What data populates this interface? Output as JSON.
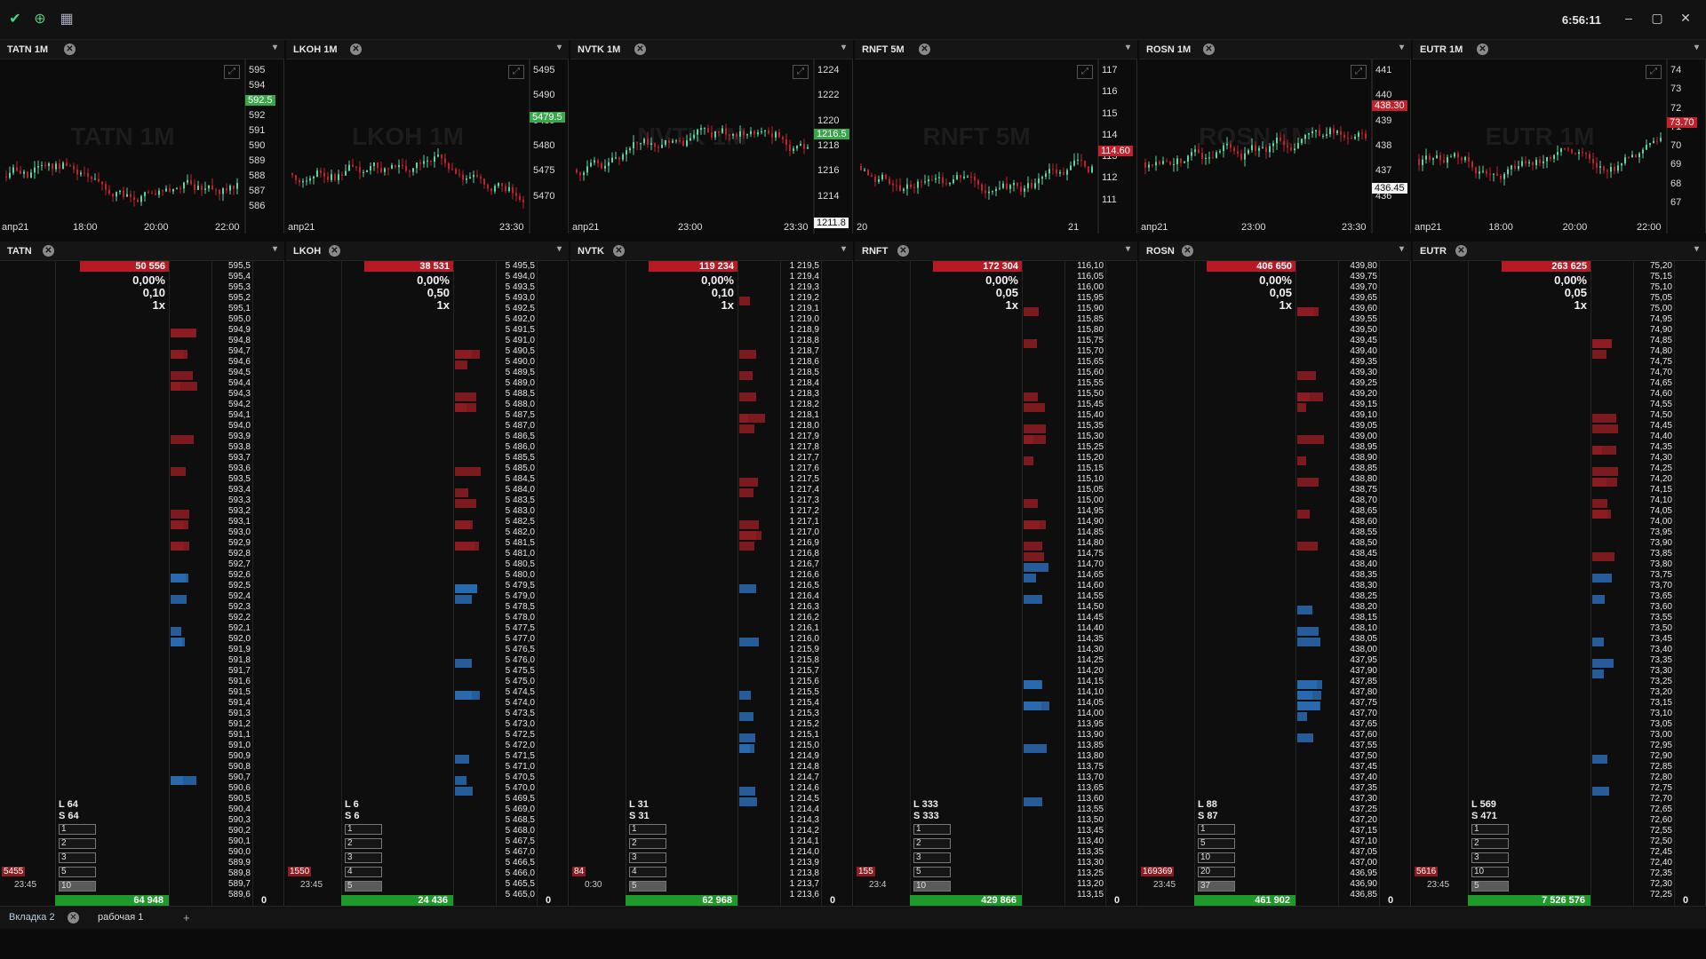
{
  "titlebar": {
    "clock": "6:56:11",
    "minimize": "–",
    "maximize": "▢",
    "close": "✕"
  },
  "charts": [
    {
      "id": "tatn",
      "title": "TATN 1M",
      "watermark": "TATN 1M",
      "dates": [
        "апр21",
        "18:00",
        "20:00",
        "22:00"
      ],
      "ticks": [
        "595",
        "594",
        "593",
        "592",
        "591",
        "590",
        "589",
        "588",
        "587",
        "586"
      ],
      "last": "592.5",
      "last_color": "#3aa64a"
    },
    {
      "id": "lkoh",
      "title": "LKOH 1M",
      "watermark": "LKOH 1M",
      "dates": [
        "апр21",
        "23:30"
      ],
      "ticks": [
        "5495",
        "5490",
        "5485",
        "5480",
        "5475",
        "5470"
      ],
      "last": "5479.5",
      "last_color": "#3aa64a"
    },
    {
      "id": "nvtk",
      "title": "NVTK 1M",
      "watermark": "NVTK 1M",
      "dates": [
        "апр21",
        "23:00",
        "23:30"
      ],
      "ticks": [
        "1224",
        "1222",
        "1220",
        "1218",
        "1216",
        "1214"
      ],
      "last": "1216.5",
      "last_color": "#3aa64a",
      "extra": "1211.8"
    },
    {
      "id": "rnft",
      "title": "RNFT 5M",
      "watermark": "RNFT 5M",
      "dates": [
        "20",
        "21"
      ],
      "ticks": [
        "117",
        "116",
        "115",
        "114",
        "113",
        "112",
        "111"
      ],
      "last": "114.60",
      "last_color": "#c0232c"
    },
    {
      "id": "rosn",
      "title": "ROSN 1M",
      "watermark": "ROSN 1M",
      "dates": [
        "апр21",
        "23:00",
        "23:30"
      ],
      "ticks": [
        "441",
        "440",
        "439",
        "438",
        "437",
        "436"
      ],
      "last": "438.30",
      "last_color": "#c0232c",
      "extra": "436.45"
    },
    {
      "id": "eutr",
      "title": "EUTR 1M",
      "watermark": "EUTR 1M",
      "dates": [
        "апр21",
        "18:00",
        "20:00",
        "22:00"
      ],
      "ticks": [
        "74",
        "73",
        "72",
        "71",
        "70",
        "69",
        "68",
        "67"
      ],
      "last": "73.70",
      "last_color": "#c0232c"
    }
  ],
  "doms": [
    {
      "id": "tatn",
      "title": "TATN",
      "volume": "50 556",
      "pct": "0,00%",
      "step": "0,10",
      "mult": "1x",
      "long": "L 64",
      "short": "S 64",
      "lots": [
        "1",
        "2",
        "3",
        "5",
        "10"
      ],
      "total": "64 948",
      "zero": "0",
      "time": "23:45",
      "last_trade": "5455",
      "prices": [
        "595,5",
        "595,4",
        "595,3",
        "595,2",
        "595,1",
        "595,0",
        "594,9",
        "594,8",
        "594,7",
        "594,6",
        "594,5",
        "594,4",
        "594,3",
        "594,2",
        "594,1",
        "594,0",
        "593,9",
        "593,8",
        "593,7",
        "593,6",
        "593,5",
        "593,4",
        "593,3",
        "593,2",
        "593,1",
        "593,0",
        "592,9",
        "592,8",
        "592,7",
        "592,6",
        "592,5",
        "592,4",
        "592,3",
        "592,2",
        "592,1",
        "592,0",
        "591,9",
        "591,8",
        "591,7",
        "591,6",
        "591,5",
        "591,4",
        "591,3",
        "591,2",
        "591,1",
        "591,0",
        "590,9",
        "590,8",
        "590,7",
        "590,6",
        "590,5",
        "590,4",
        "590,3",
        "590,2",
        "590,1",
        "590,0",
        "589,9",
        "589,8",
        "589,7",
        "589,6"
      ]
    },
    {
      "id": "lkoh",
      "title": "LKOH",
      "volume": "38 531",
      "pct": "0,00%",
      "step": "0,50",
      "mult": "1x",
      "long": "L 6",
      "short": "S 6",
      "lots": [
        "1",
        "2",
        "3",
        "4",
        "5"
      ],
      "total": "24 436",
      "zero": "0",
      "time": "23:45",
      "last_trade": "1550",
      "prices": [
        "5 495,5",
        "5 494,0",
        "5 493,5",
        "5 493,0",
        "5 492,5",
        "5 492,0",
        "5 491,5",
        "5 491,0",
        "5 490,5",
        "5 490,0",
        "5 489,5",
        "5 489,0",
        "5 488,5",
        "5 488,0",
        "5 487,5",
        "5 487,0",
        "5 486,5",
        "5 486,0",
        "5 485,5",
        "5 485,0",
        "5 484,5",
        "5 484,0",
        "5 483,5",
        "5 483,0",
        "5 482,5",
        "5 482,0",
        "5 481,5",
        "5 481,0",
        "5 480,5",
        "5 480,0",
        "5 479,5",
        "5 479,0",
        "5 478,5",
        "5 478,0",
        "5 477,5",
        "5 477,0",
        "5 476,5",
        "5 476,0",
        "5 475,5",
        "5 475,0",
        "5 474,5",
        "5 474,0",
        "5 473,5",
        "5 473,0",
        "5 472,5",
        "5 472,0",
        "5 471,5",
        "5 471,0",
        "5 470,5",
        "5 470,0",
        "5 469,5",
        "5 469,0",
        "5 468,5",
        "5 468,0",
        "5 467,5",
        "5 467,0",
        "5 466,5",
        "5 466,0",
        "5 465,5",
        "5 465,0"
      ]
    },
    {
      "id": "nvtk",
      "title": "NVTK",
      "volume": "119 234",
      "pct": "0,00%",
      "step": "0,10",
      "mult": "1x",
      "long": "L 31",
      "short": "S 31",
      "lots": [
        "1",
        "2",
        "3",
        "4",
        "5"
      ],
      "total": "62 968",
      "zero": "0",
      "time": "0:30",
      "last_trade": "84",
      "prices": [
        "1 219,5",
        "1 219,4",
        "1 219,3",
        "1 219,2",
        "1 219,1",
        "1 219,0",
        "1 218,9",
        "1 218,8",
        "1 218,7",
        "1 218,6",
        "1 218,5",
        "1 218,4",
        "1 218,3",
        "1 218,2",
        "1 218,1",
        "1 218,0",
        "1 217,9",
        "1 217,8",
        "1 217,7",
        "1 217,6",
        "1 217,5",
        "1 217,4",
        "1 217,3",
        "1 217,2",
        "1 217,1",
        "1 217,0",
        "1 216,9",
        "1 216,8",
        "1 216,7",
        "1 216,6",
        "1 216,5",
        "1 216,4",
        "1 216,3",
        "1 216,2",
        "1 216,1",
        "1 216,0",
        "1 215,9",
        "1 215,8",
        "1 215,7",
        "1 215,6",
        "1 215,5",
        "1 215,4",
        "1 215,3",
        "1 215,2",
        "1 215,1",
        "1 215,0",
        "1 214,9",
        "1 214,8",
        "1 214,7",
        "1 214,6",
        "1 214,5",
        "1 214,4",
        "1 214,3",
        "1 214,2",
        "1 214,1",
        "1 214,0",
        "1 213,9",
        "1 213,8",
        "1 213,7",
        "1 213,6"
      ]
    },
    {
      "id": "rnft",
      "title": "RNFT",
      "volume": "172 304",
      "pct": "0,00%",
      "step": "0,05",
      "mult": "1x",
      "long": "L 333",
      "short": "S 333",
      "lots": [
        "1",
        "2",
        "3",
        "5",
        "10"
      ],
      "total": "429 866",
      "zero": "0",
      "time": "23:4",
      "last_trade": "155",
      "prices": [
        "116,10",
        "116,05",
        "116,00",
        "115,95",
        "115,90",
        "115,85",
        "115,80",
        "115,75",
        "115,70",
        "115,65",
        "115,60",
        "115,55",
        "115,50",
        "115,45",
        "115,40",
        "115,35",
        "115,30",
        "115,25",
        "115,20",
        "115,15",
        "115,10",
        "115,05",
        "115,00",
        "114,95",
        "114,90",
        "114,85",
        "114,80",
        "114,75",
        "114,70",
        "114,65",
        "114,60",
        "114,55",
        "114,50",
        "114,45",
        "114,40",
        "114,35",
        "114,30",
        "114,25",
        "114,20",
        "114,15",
        "114,10",
        "114,05",
        "114,00",
        "113,95",
        "113,90",
        "113,85",
        "113,80",
        "113,75",
        "113,70",
        "113,65",
        "113,60",
        "113,55",
        "113,50",
        "113,45",
        "113,40",
        "113,35",
        "113,30",
        "113,25",
        "113,20",
        "113,15"
      ]
    },
    {
      "id": "rosn",
      "title": "ROSN",
      "volume": "406 650",
      "pct": "0,00%",
      "step": "0,05",
      "mult": "1x",
      "long": "L 88",
      "short": "S 87",
      "lots": [
        "1",
        "5",
        "10",
        "20",
        "37"
      ],
      "total": "461 902",
      "zero": "0",
      "time": "23:45",
      "last_trade": "169369",
      "prices": [
        "439,80",
        "439,75",
        "439,70",
        "439,65",
        "439,60",
        "439,55",
        "439,50",
        "439,45",
        "439,40",
        "439,35",
        "439,30",
        "439,25",
        "439,20",
        "439,15",
        "439,10",
        "439,05",
        "439,00",
        "438,95",
        "438,90",
        "438,85",
        "438,80",
        "438,75",
        "438,70",
        "438,65",
        "438,60",
        "438,55",
        "438,50",
        "438,45",
        "438,40",
        "438,35",
        "438,30",
        "438,25",
        "438,20",
        "438,15",
        "438,10",
        "438,05",
        "438,00",
        "437,95",
        "437,90",
        "437,85",
        "437,80",
        "437,75",
        "437,70",
        "437,65",
        "437,60",
        "437,55",
        "437,50",
        "437,45",
        "437,40",
        "437,35",
        "437,30",
        "437,25",
        "437,20",
        "437,15",
        "437,10",
        "437,05",
        "437,00",
        "436,95",
        "436,90",
        "436,85"
      ]
    },
    {
      "id": "eutr",
      "title": "EUTR",
      "volume": "263 625",
      "pct": "0,00%",
      "step": "0,05",
      "mult": "1x",
      "long": "L 569",
      "short": "S 471",
      "lots": [
        "1",
        "2",
        "3",
        "10",
        "5"
      ],
      "total": "7 526 576",
      "zero": "0",
      "time": "23:45",
      "last_trade": "5616",
      "prices": [
        "75,20",
        "75,15",
        "75,10",
        "75,05",
        "75,00",
        "74,95",
        "74,90",
        "74,85",
        "74,80",
        "74,75",
        "74,70",
        "74,65",
        "74,60",
        "74,55",
        "74,50",
        "74,45",
        "74,40",
        "74,35",
        "74,30",
        "74,25",
        "74,20",
        "74,15",
        "74,10",
        "74,05",
        "74,00",
        "73,95",
        "73,90",
        "73,85",
        "73,80",
        "73,75",
        "73,70",
        "73,65",
        "73,60",
        "73,55",
        "73,50",
        "73,45",
        "73,40",
        "73,35",
        "73,30",
        "73,25",
        "73,20",
        "73,15",
        "73,10",
        "73,05",
        "73,00",
        "72,95",
        "72,90",
        "72,85",
        "72,80",
        "72,75",
        "72,70",
        "72,65",
        "72,60",
        "72,55",
        "72,50",
        "72,45",
        "72,40",
        "72,35",
        "72,30",
        "72,25"
      ]
    }
  ],
  "tabs": [
    {
      "label": "Вкладка 2"
    },
    {
      "label": "рабочая 1"
    }
  ],
  "colors": {
    "bull": "#5fd3a0",
    "bear": "#c0232c",
    "bid": "#1f8a2e",
    "ask": "#8e1d23",
    "blue": "#2a6bb0"
  }
}
